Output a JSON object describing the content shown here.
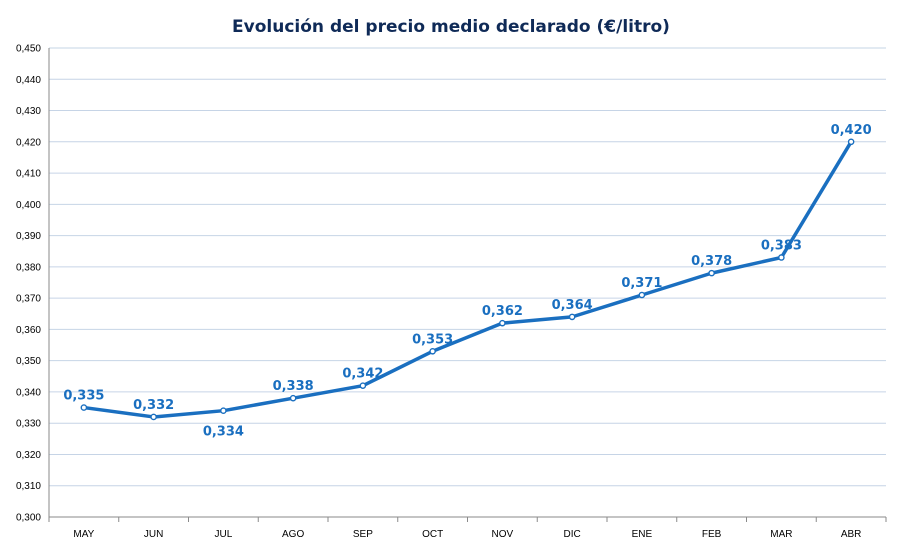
{
  "chart_data": {
    "type": "line",
    "title": "Evolución del precio medio declarado (€/litro)",
    "xlabel": "",
    "ylabel": "",
    "categories": [
      "MAY",
      "JUN",
      "JUL",
      "AGO",
      "SEP",
      "OCT",
      "NOV",
      "DIC",
      "ENE",
      "FEB",
      "MAR",
      "ABR"
    ],
    "series": [
      {
        "values": [
          0.335,
          0.332,
          0.334,
          0.338,
          0.342,
          0.353,
          0.362,
          0.364,
          0.371,
          0.378,
          0.383,
          0.42
        ],
        "labels": [
          "0,335",
          "0,332",
          "0,334",
          "0,338",
          "0,342",
          "0,353",
          "0,362",
          "0,364",
          "0,371",
          "0,378",
          "0,383",
          "0,420"
        ],
        "label_position": [
          "above",
          "above",
          "below",
          "above",
          "above",
          "above",
          "above",
          "above",
          "above",
          "above",
          "above",
          "above"
        ]
      }
    ],
    "ylim": [
      0.3,
      0.45
    ],
    "yticks": [
      0.3,
      0.31,
      0.32,
      0.33,
      0.34,
      0.35,
      0.36,
      0.37,
      0.38,
      0.39,
      0.4,
      0.41,
      0.42,
      0.43,
      0.44,
      0.45
    ],
    "ytick_labels": [
      "0,300",
      "0,310",
      "0,320",
      "0,330",
      "0,340",
      "0,350",
      "0,360",
      "0,370",
      "0,380",
      "0,390",
      "0,400",
      "0,410",
      "0,420",
      "0,430",
      "0,440",
      "0,450"
    ],
    "grid": true,
    "legend": "none",
    "colors": {
      "line": "#1a6fc0",
      "title": "#0f2a57",
      "grid": "#c6d4e6",
      "axis": "#8a8a8a"
    }
  }
}
